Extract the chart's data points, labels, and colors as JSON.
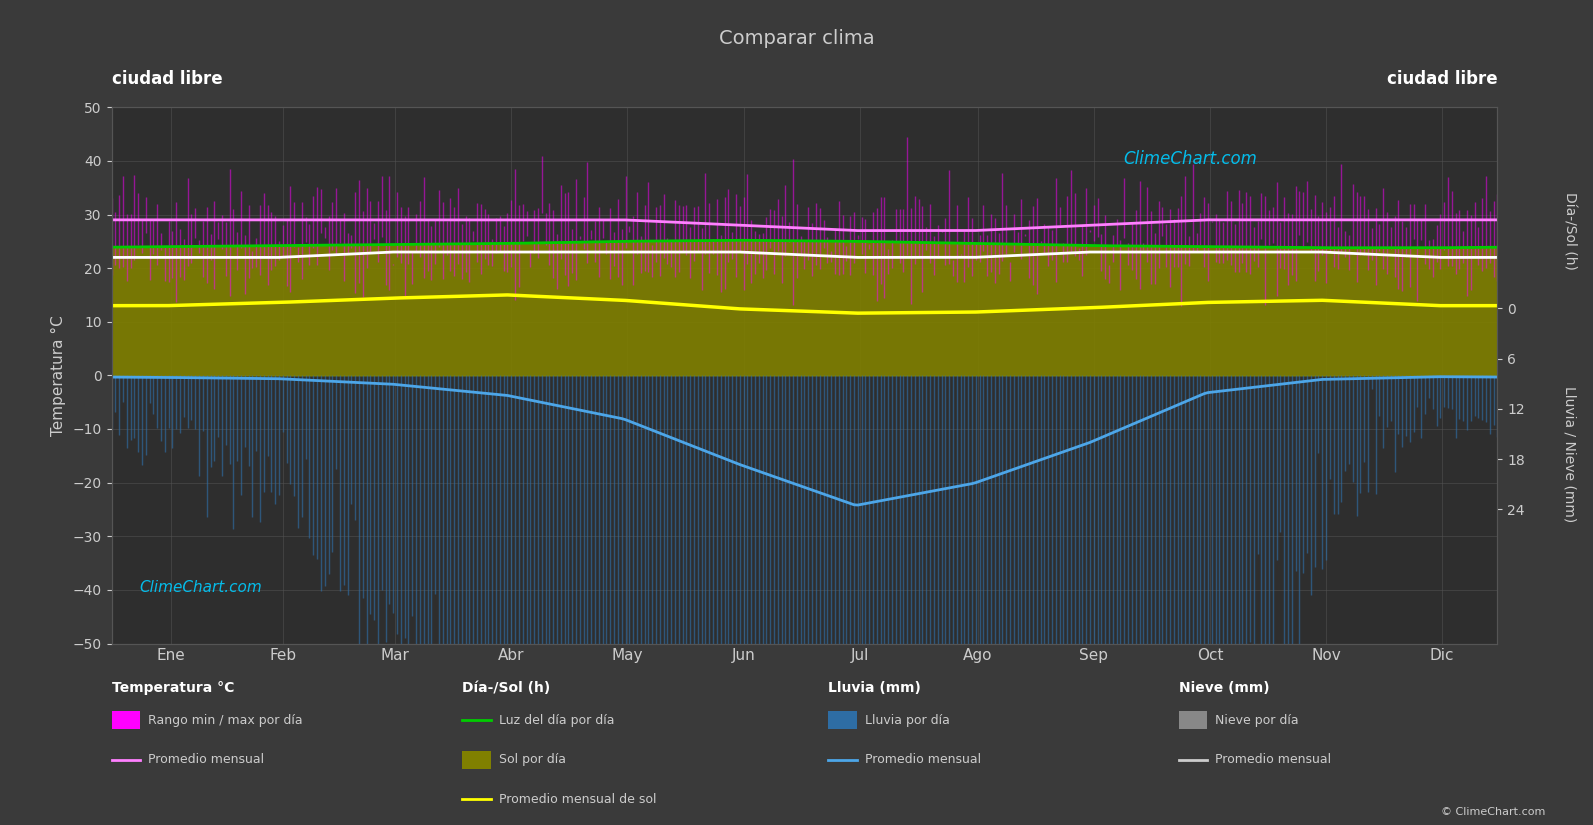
{
  "title": "Comparar clima",
  "city_left": "ciudad libre",
  "city_right": "ciudad libre",
  "background_color": "#3a3a3a",
  "plot_bg_color": "#2e2e2e",
  "text_color": "#cccccc",
  "ylabel_left": "Temperatura °C",
  "ylabel_right_top": "Día-/Sol (h)",
  "ylabel_right_bot": "Lluvia / Nieve (mm)",
  "ylim_left": [
    -50,
    50
  ],
  "ylim_right": [
    40,
    -24
  ],
  "months": [
    "Ene",
    "Feb",
    "Mar",
    "Abr",
    "May",
    "Jun",
    "Jul",
    "Ago",
    "Sep",
    "Oct",
    "Nov",
    "Dic"
  ],
  "temp_max_monthly": [
    29,
    29,
    29,
    29,
    29,
    28,
    27,
    27,
    28,
    29,
    29,
    29
  ],
  "temp_min_monthly": [
    22,
    22,
    23,
    23,
    23,
    23,
    22,
    22,
    23,
    23,
    23,
    22
  ],
  "daylight_hours": [
    12.0,
    12.1,
    12.2,
    12.3,
    12.5,
    12.6,
    12.5,
    12.3,
    12.1,
    12.0,
    11.9,
    11.9
  ],
  "sunshine_hours": [
    6.5,
    6.8,
    7.2,
    7.5,
    7.0,
    6.2,
    5.8,
    5.9,
    6.3,
    6.8,
    7.0,
    6.5
  ],
  "rain_monthly_mm": [
    10,
    15,
    40,
    90,
    200,
    400,
    600,
    500,
    300,
    80,
    20,
    5
  ],
  "rain_avg_line": [
    0.3,
    0.5,
    1.3,
    3.0,
    6.5,
    13.3,
    19.4,
    16.1,
    10.0,
    2.6,
    0.6,
    0.2
  ],
  "temp_color_magenta": "#ff00ff",
  "temp_color_pink": "#ff80ff",
  "temp_color_green": "#00cc00",
  "temp_color_white": "#ffffff",
  "sol_color_fill": "#808000",
  "sol_color_line": "#ffff00",
  "rain_color_fill": "#2e6da4",
  "rain_color_line": "#4da6e8",
  "snow_color_fill": "#aaaaaa",
  "grid_color": "#555555",
  "watermark": "ClimeChart.com",
  "copyright": "© ClimeChart.com"
}
